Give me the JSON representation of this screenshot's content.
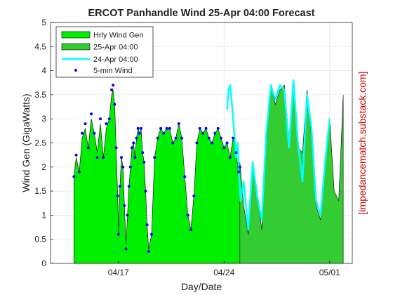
{
  "chart_data": {
    "type": "area",
    "title": "ERCOT Panhandle Wind  25-Apr 04:00 Forecast",
    "xlabel": "Day/Date",
    "ylabel": "Wind Gen (GigaWatts)",
    "credit": "[impedancematch.substack.com]",
    "ylim": [
      0,
      5
    ],
    "yticks": [
      "0",
      "0.5",
      "1",
      "1.5",
      "2",
      "2.5",
      "3",
      "3.5",
      "4",
      "4.5",
      "5"
    ],
    "xlim_days": [
      12.5,
      32.5
    ],
    "xticks": [
      {
        "day": 17,
        "label": "04/17"
      },
      {
        "day": 24,
        "label": "04/24"
      },
      {
        "day": 31,
        "label": "05/01"
      }
    ],
    "grid": true,
    "legend_position": "top-left",
    "colors": {
      "hourly_fill": "#00ee00",
      "forecast_fill": "#33cc33",
      "prev_forecast": "#00ffff",
      "five_min": "#0000ff",
      "credit": "#cc0000"
    },
    "series": [
      {
        "name": "Hrly Wind Gen",
        "style": "filled area",
        "x": [
          14.05,
          14.2,
          14.4,
          14.6,
          14.8,
          15.0,
          15.2,
          15.4,
          15.6,
          15.8,
          16.0,
          16.2,
          16.4,
          16.55,
          16.65,
          16.75,
          16.85,
          16.95,
          17.0,
          17.1,
          17.2,
          17.3,
          17.4,
          17.5,
          17.6,
          17.7,
          17.8,
          17.9,
          18.0,
          18.1,
          18.2,
          18.3,
          18.4,
          18.5,
          18.6,
          18.7,
          18.8,
          18.9,
          19.0,
          19.2,
          19.4,
          19.6,
          19.8,
          20.0,
          20.2,
          20.4,
          20.6,
          20.8,
          21.0,
          21.2,
          21.4,
          21.6,
          21.8,
          22.0,
          22.2,
          22.4,
          22.6,
          22.8,
          23.0,
          23.2,
          23.4,
          23.6,
          23.8,
          24.0,
          24.2,
          24.4,
          24.6,
          24.8,
          24.95,
          25.05
        ],
        "y": [
          1.8,
          2.2,
          1.9,
          2.6,
          2.8,
          2.4,
          3.0,
          2.7,
          2.3,
          2.9,
          2.2,
          2.8,
          3.0,
          3.5,
          3.6,
          3.3,
          2.4,
          1.4,
          0.6,
          1.6,
          2.2,
          2.0,
          1.2,
          0.4,
          1.0,
          1.6,
          2.0,
          2.4,
          2.5,
          2.2,
          2.6,
          2.8,
          2.7,
          2.8,
          2.3,
          2.1,
          1.5,
          0.8,
          0.3,
          0.6,
          2.2,
          2.6,
          2.8,
          2.7,
          2.8,
          2.8,
          2.5,
          2.6,
          2.9,
          2.6,
          1.8,
          1.0,
          0.7,
          1.4,
          2.5,
          2.8,
          2.7,
          2.8,
          2.6,
          2.5,
          2.7,
          2.8,
          2.6,
          2.4,
          2.5,
          2.2,
          2.6,
          2.3,
          1.9,
          2.0
        ]
      },
      {
        "name": "25-Apr 04:00",
        "style": "filled area",
        "x": [
          25.05,
          25.3,
          25.6,
          25.9,
          26.2,
          26.5,
          26.8,
          27.1,
          27.4,
          27.7,
          28.0,
          28.3,
          28.6,
          28.9,
          29.2,
          29.5,
          29.8,
          30.1,
          30.4,
          30.7,
          31.0,
          31.3,
          31.6,
          31.9
        ],
        "y": [
          2.1,
          1.2,
          0.6,
          2.0,
          1.5,
          0.7,
          2.5,
          3.7,
          3.3,
          3.6,
          3.7,
          2.6,
          3.8,
          2.4,
          2.3,
          3.6,
          2.6,
          1.2,
          0.9,
          2.0,
          3.0,
          1.5,
          1.3,
          3.5
        ]
      },
      {
        "name": "24-Apr 04:00",
        "style": "line",
        "x": [
          24.2,
          24.3,
          24.4,
          24.5,
          24.6,
          24.7,
          24.8,
          24.9,
          25.0,
          25.1,
          25.3,
          25.6,
          25.9,
          26.2,
          26.5,
          26.8,
          27.1,
          27.4,
          27.7,
          28.0,
          28.3,
          28.6,
          28.9,
          29.2,
          29.5,
          29.8,
          30.1,
          30.4,
          30.7,
          31.0
        ],
        "y": [
          3.2,
          3.6,
          3.7,
          3.4,
          3.0,
          2.6,
          2.2,
          2.5,
          1.8,
          1.3,
          1.7,
          0.7,
          2.1,
          1.4,
          0.9,
          2.7,
          3.7,
          3.4,
          3.7,
          3.6,
          2.4,
          3.8,
          2.5,
          1.7,
          3.5,
          2.8,
          1.3,
          1.0,
          2.1,
          3.0
        ]
      },
      {
        "name": "5-min Wind",
        "style": "points",
        "x": [
          14.05,
          14.2,
          14.4,
          14.6,
          14.8,
          15.0,
          15.2,
          15.4,
          15.6,
          15.8,
          16.0,
          16.2,
          16.4,
          16.55,
          16.65,
          16.75,
          16.85,
          16.95,
          17.0,
          17.1,
          17.2,
          17.3,
          17.4,
          17.5,
          17.6,
          17.7,
          17.8,
          17.9,
          18.0,
          18.1,
          18.2,
          18.3,
          18.4,
          18.5,
          18.6,
          18.7,
          18.8,
          18.9,
          19.0,
          19.2,
          19.4,
          19.6,
          19.8,
          20.0,
          20.2,
          20.4,
          20.6,
          20.8,
          21.0,
          21.2,
          21.4,
          21.6,
          21.8,
          22.0,
          22.2,
          22.4,
          22.6,
          22.8,
          23.0,
          23.2,
          23.4,
          23.6,
          23.8,
          24.0,
          24.2,
          24.4,
          24.6,
          24.8,
          24.95,
          25.05
        ],
        "y": [
          1.8,
          2.25,
          1.9,
          2.7,
          2.9,
          2.4,
          3.1,
          2.7,
          2.2,
          3.0,
          2.2,
          2.9,
          3.0,
          3.6,
          3.7,
          3.3,
          2.4,
          1.4,
          0.6,
          1.6,
          2.2,
          2.0,
          1.2,
          0.3,
          1.0,
          1.6,
          2.0,
          2.4,
          2.5,
          2.2,
          2.6,
          2.8,
          2.7,
          2.8,
          2.3,
          2.1,
          1.5,
          0.8,
          0.25,
          0.6,
          2.2,
          2.6,
          2.8,
          2.7,
          2.8,
          2.8,
          2.5,
          2.6,
          2.9,
          2.6,
          1.8,
          1.0,
          0.7,
          1.4,
          2.5,
          2.8,
          2.7,
          2.8,
          2.6,
          2.5,
          2.7,
          2.8,
          2.6,
          2.4,
          2.5,
          2.2,
          2.6,
          2.3,
          1.9,
          2.0
        ]
      }
    ]
  }
}
